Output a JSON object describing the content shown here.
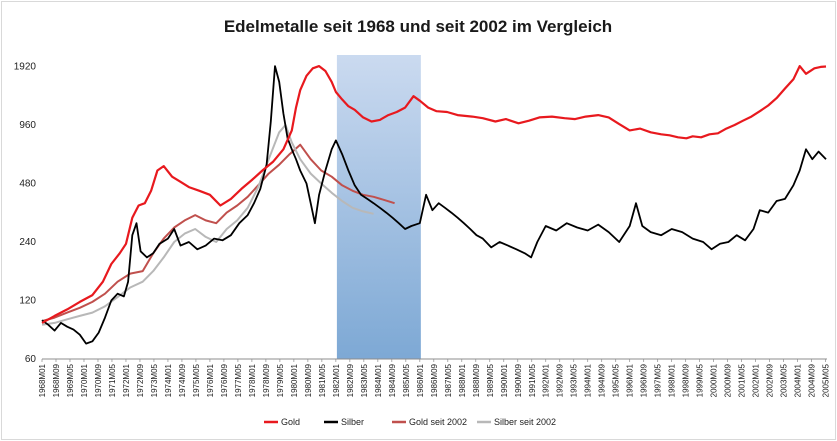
{
  "chart_data": {
    "type": "line",
    "title": "Edelmetalle seit 1968 und seit 2002 im Vergleich",
    "y_scale": "log2",
    "ylim": [
      60,
      2200
    ],
    "y_ticks": [
      60,
      120,
      240,
      480,
      960,
      1920
    ],
    "x_range": [
      "1968M01",
      "2005M05"
    ],
    "x_tick_labels": [
      "1968M01",
      "1968M09",
      "1969M05",
      "1970M01",
      "1970M09",
      "1971M05",
      "1972M01",
      "1972M09",
      "1973M05",
      "1974M01",
      "1974M09",
      "1975M05",
      "1976M01",
      "1976M09",
      "1977M05",
      "1978M01",
      "1978M09",
      "1979M05",
      "1980M01",
      "1980M09",
      "1981M05",
      "1982M01",
      "1982M09",
      "1983M05",
      "1984M01",
      "1984M09",
      "1985M05",
      "1986M01",
      "1986M09",
      "1987M05",
      "1988M01",
      "1988M09",
      "1989M05",
      "1990M01",
      "1990M09",
      "1991M05",
      "1992M01",
      "1992M09",
      "1993M05",
      "1994M01",
      "1994M09",
      "1995M05",
      "1996M01",
      "1996M09",
      "1997M05",
      "1998M01",
      "1998M09",
      "1999M05",
      "2000M01",
      "2000M09",
      "2001M05",
      "2002M01",
      "2002M09",
      "2003M05",
      "2004M01",
      "2004M09",
      "2005M05"
    ],
    "shaded_region": {
      "from": 1982.05,
      "to": 1986.05,
      "color": "#6f9fd0"
    },
    "legend": {
      "position": "bottom"
    },
    "series": [
      {
        "name": "Gold",
        "color": "#e8191e",
        "points": [
          [
            1968.0,
            92
          ],
          [
            1968.6,
            100
          ],
          [
            1969.2,
            108
          ],
          [
            1969.8,
            118
          ],
          [
            1970.4,
            128
          ],
          [
            1970.9,
            150
          ],
          [
            1971.3,
            185
          ],
          [
            1971.7,
            210
          ],
          [
            1972.0,
            235
          ],
          [
            1972.3,
            320
          ],
          [
            1972.6,
            370
          ],
          [
            1972.9,
            380
          ],
          [
            1973.2,
            440
          ],
          [
            1973.5,
            560
          ],
          [
            1973.8,
            590
          ],
          [
            1974.2,
            520
          ],
          [
            1974.6,
            490
          ],
          [
            1975.0,
            460
          ],
          [
            1975.5,
            440
          ],
          [
            1976.0,
            420
          ],
          [
            1976.5,
            370
          ],
          [
            1977.0,
            400
          ],
          [
            1977.5,
            450
          ],
          [
            1978.0,
            500
          ],
          [
            1978.5,
            560
          ],
          [
            1979.0,
            620
          ],
          [
            1979.5,
            720
          ],
          [
            1979.9,
            900
          ],
          [
            1980.1,
            1180
          ],
          [
            1980.3,
            1450
          ],
          [
            1980.6,
            1720
          ],
          [
            1980.9,
            1880
          ],
          [
            1981.2,
            1930
          ],
          [
            1981.5,
            1820
          ],
          [
            1981.8,
            1600
          ],
          [
            1982.0,
            1420
          ],
          [
            1982.3,
            1300
          ],
          [
            1982.6,
            1200
          ],
          [
            1982.9,
            1150
          ],
          [
            1983.3,
            1050
          ],
          [
            1983.7,
            1000
          ],
          [
            1984.1,
            1020
          ],
          [
            1984.5,
            1080
          ],
          [
            1984.9,
            1120
          ],
          [
            1985.3,
            1180
          ],
          [
            1985.7,
            1350
          ],
          [
            1986.0,
            1280
          ],
          [
            1986.4,
            1180
          ],
          [
            1986.8,
            1130
          ],
          [
            1987.3,
            1120
          ],
          [
            1987.8,
            1080
          ],
          [
            1988.5,
            1060
          ],
          [
            1989.0,
            1040
          ],
          [
            1989.6,
            1000
          ],
          [
            1990.1,
            1030
          ],
          [
            1990.7,
            980
          ],
          [
            1991.2,
            1010
          ],
          [
            1991.7,
            1050
          ],
          [
            1992.3,
            1060
          ],
          [
            1992.9,
            1040
          ],
          [
            1993.4,
            1030
          ],
          [
            1993.9,
            1060
          ],
          [
            1994.5,
            1080
          ],
          [
            1995.0,
            1050
          ],
          [
            1995.5,
            970
          ],
          [
            1996.0,
            900
          ],
          [
            1996.5,
            920
          ],
          [
            1997.0,
            880
          ],
          [
            1997.5,
            860
          ],
          [
            1997.9,
            850
          ],
          [
            1998.3,
            830
          ],
          [
            1998.7,
            820
          ],
          [
            1999.0,
            840
          ],
          [
            1999.4,
            830
          ],
          [
            1999.8,
            860
          ],
          [
            2000.2,
            870
          ],
          [
            2000.6,
            920
          ],
          [
            2001.0,
            960
          ],
          [
            2001.4,
            1010
          ],
          [
            2001.8,
            1060
          ],
          [
            2002.2,
            1130
          ],
          [
            2002.6,
            1210
          ],
          [
            2003.0,
            1320
          ],
          [
            2003.4,
            1480
          ],
          [
            2003.8,
            1650
          ],
          [
            2004.1,
            1930
          ],
          [
            2004.4,
            1760
          ],
          [
            2004.8,
            1880
          ],
          [
            2005.1,
            1910
          ],
          [
            2005.35,
            1920
          ]
        ]
      },
      {
        "name": "Silber",
        "color": "#000000",
        "points": [
          [
            1968.0,
            95
          ],
          [
            1968.3,
            90
          ],
          [
            1968.6,
            84
          ],
          [
            1968.9,
            92
          ],
          [
            1969.2,
            88
          ],
          [
            1969.5,
            85
          ],
          [
            1969.8,
            80
          ],
          [
            1970.1,
            72
          ],
          [
            1970.4,
            74
          ],
          [
            1970.7,
            82
          ],
          [
            1971.0,
            98
          ],
          [
            1971.3,
            120
          ],
          [
            1971.6,
            130
          ],
          [
            1971.9,
            126
          ],
          [
            1972.1,
            150
          ],
          [
            1972.3,
            260
          ],
          [
            1972.5,
            300
          ],
          [
            1972.7,
            215
          ],
          [
            1973.0,
            200
          ],
          [
            1973.3,
            210
          ],
          [
            1973.6,
            235
          ],
          [
            1974.0,
            250
          ],
          [
            1974.3,
            280
          ],
          [
            1974.6,
            230
          ],
          [
            1975.0,
            240
          ],
          [
            1975.4,
            220
          ],
          [
            1975.8,
            230
          ],
          [
            1976.2,
            250
          ],
          [
            1976.6,
            245
          ],
          [
            1977.0,
            260
          ],
          [
            1977.4,
            300
          ],
          [
            1977.8,
            330
          ],
          [
            1978.1,
            380
          ],
          [
            1978.4,
            450
          ],
          [
            1978.7,
            600
          ],
          [
            1978.9,
            1000
          ],
          [
            1979.1,
            1930
          ],
          [
            1979.3,
            1600
          ],
          [
            1979.5,
            1100
          ],
          [
            1979.7,
            820
          ],
          [
            1979.9,
            720
          ],
          [
            1980.1,
            640
          ],
          [
            1980.3,
            560
          ],
          [
            1980.6,
            480
          ],
          [
            1980.8,
            380
          ],
          [
            1981.0,
            300
          ],
          [
            1981.2,
            420
          ],
          [
            1981.5,
            560
          ],
          [
            1981.8,
            720
          ],
          [
            1982.0,
            800
          ],
          [
            1982.3,
            680
          ],
          [
            1982.6,
            560
          ],
          [
            1982.9,
            470
          ],
          [
            1983.2,
            420
          ],
          [
            1983.5,
            400
          ],
          [
            1983.8,
            380
          ],
          [
            1984.1,
            360
          ],
          [
            1984.4,
            340
          ],
          [
            1984.7,
            320
          ],
          [
            1985.0,
            300
          ],
          [
            1985.3,
            280
          ],
          [
            1985.6,
            290
          ],
          [
            1986.0,
            300
          ],
          [
            1986.3,
            420
          ],
          [
            1986.6,
            350
          ],
          [
            1986.9,
            380
          ],
          [
            1987.2,
            360
          ],
          [
            1987.5,
            340
          ],
          [
            1987.8,
            320
          ],
          [
            1988.1,
            300
          ],
          [
            1988.4,
            280
          ],
          [
            1988.7,
            260
          ],
          [
            1989.0,
            250
          ],
          [
            1989.4,
            225
          ],
          [
            1989.8,
            240
          ],
          [
            1990.2,
            230
          ],
          [
            1990.6,
            220
          ],
          [
            1991.0,
            210
          ],
          [
            1991.3,
            200
          ],
          [
            1991.6,
            240
          ],
          [
            1992.0,
            290
          ],
          [
            1992.5,
            275
          ],
          [
            1993.0,
            300
          ],
          [
            1993.5,
            285
          ],
          [
            1994.0,
            275
          ],
          [
            1994.5,
            295
          ],
          [
            1995.0,
            270
          ],
          [
            1995.5,
            240
          ],
          [
            1996.0,
            290
          ],
          [
            1996.3,
            380
          ],
          [
            1996.6,
            290
          ],
          [
            1997.0,
            270
          ],
          [
            1997.5,
            260
          ],
          [
            1998.0,
            280
          ],
          [
            1998.5,
            270
          ],
          [
            1999.0,
            250
          ],
          [
            1999.5,
            240
          ],
          [
            1999.9,
            220
          ],
          [
            2000.3,
            235
          ],
          [
            2000.7,
            240
          ],
          [
            2001.1,
            260
          ],
          [
            2001.5,
            245
          ],
          [
            2001.9,
            280
          ],
          [
            2002.2,
            350
          ],
          [
            2002.6,
            340
          ],
          [
            2003.0,
            390
          ],
          [
            2003.4,
            400
          ],
          [
            2003.8,
            470
          ],
          [
            2004.1,
            560
          ],
          [
            2004.4,
            720
          ],
          [
            2004.7,
            640
          ],
          [
            2005.0,
            700
          ],
          [
            2005.35,
            640
          ]
        ]
      },
      {
        "name": "Gold seit 2002",
        "color": "#c0504d",
        "points": [
          [
            1968.0,
            94
          ],
          [
            1968.6,
            98
          ],
          [
            1969.2,
            104
          ],
          [
            1969.8,
            110
          ],
          [
            1970.4,
            118
          ],
          [
            1971.0,
            130
          ],
          [
            1971.6,
            150
          ],
          [
            1972.2,
            165
          ],
          [
            1972.8,
            170
          ],
          [
            1973.3,
            210
          ],
          [
            1973.8,
            250
          ],
          [
            1974.3,
            285
          ],
          [
            1974.8,
            310
          ],
          [
            1975.3,
            330
          ],
          [
            1975.8,
            310
          ],
          [
            1976.3,
            300
          ],
          [
            1976.8,
            340
          ],
          [
            1977.3,
            370
          ],
          [
            1977.8,
            410
          ],
          [
            1978.3,
            470
          ],
          [
            1978.8,
            540
          ],
          [
            1979.3,
            600
          ],
          [
            1979.8,
            680
          ],
          [
            1980.3,
            760
          ],
          [
            1980.8,
            640
          ],
          [
            1981.3,
            560
          ],
          [
            1981.8,
            520
          ],
          [
            1982.3,
            470
          ],
          [
            1982.8,
            440
          ],
          [
            1983.3,
            420
          ],
          [
            1983.8,
            410
          ],
          [
            1984.3,
            395
          ],
          [
            1984.8,
            380
          ]
        ]
      },
      {
        "name": "Silber seit 2002",
        "color": "#b8b8b8",
        "points": [
          [
            1968.0,
            90
          ],
          [
            1968.6,
            92
          ],
          [
            1969.2,
            96
          ],
          [
            1969.8,
            100
          ],
          [
            1970.4,
            104
          ],
          [
            1971.0,
            112
          ],
          [
            1971.6,
            125
          ],
          [
            1972.2,
            140
          ],
          [
            1972.8,
            150
          ],
          [
            1973.3,
            170
          ],
          [
            1973.8,
            200
          ],
          [
            1974.3,
            240
          ],
          [
            1974.8,
            265
          ],
          [
            1975.3,
            280
          ],
          [
            1975.8,
            255
          ],
          [
            1976.3,
            240
          ],
          [
            1976.8,
            280
          ],
          [
            1977.3,
            310
          ],
          [
            1977.8,
            360
          ],
          [
            1978.3,
            460
          ],
          [
            1978.8,
            640
          ],
          [
            1979.3,
            880
          ],
          [
            1979.6,
            960
          ],
          [
            1979.9,
            780
          ],
          [
            1980.3,
            640
          ],
          [
            1980.8,
            540
          ],
          [
            1981.3,
            480
          ],
          [
            1981.8,
            430
          ],
          [
            1982.3,
            390
          ],
          [
            1982.8,
            360
          ],
          [
            1983.3,
            345
          ],
          [
            1983.8,
            335
          ]
        ]
      }
    ]
  }
}
